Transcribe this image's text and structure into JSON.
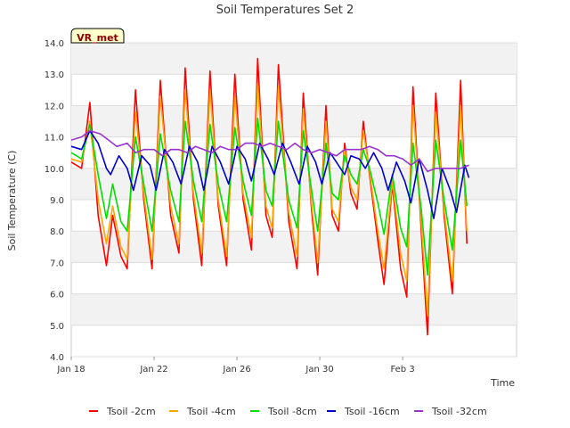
{
  "chart_data": {
    "type": "line",
    "title": "Soil Temperatures Set 2",
    "xlabel": "Time",
    "ylabel": "Soil Temperature (C)",
    "ylim": [
      4.0,
      14.0
    ],
    "yticks": [
      "4.0",
      "5.0",
      "6.0",
      "7.0",
      "8.0",
      "9.0",
      "10.0",
      "11.0",
      "12.0",
      "13.0",
      "14.0"
    ],
    "x_range_days": [
      0,
      21.5
    ],
    "xticks": [
      {
        "day": 0,
        "label": "Jan 18"
      },
      {
        "day": 4,
        "label": "Jan 22"
      },
      {
        "day": 8,
        "label": "Jan 26"
      },
      {
        "day": 12,
        "label": "Jan 30"
      },
      {
        "day": 16,
        "label": "Feb 3"
      }
    ],
    "grid": true,
    "legend_position": "bottom",
    "badge": "VR_met",
    "series": [
      {
        "name": "Tsoil -2cm",
        "color": "#ff0000",
        "points": [
          [
            0.0,
            10.2
          ],
          [
            0.5,
            10.0
          ],
          [
            0.9,
            12.1
          ],
          [
            1.3,
            8.5
          ],
          [
            1.7,
            6.9
          ],
          [
            2.0,
            8.5
          ],
          [
            2.4,
            7.2
          ],
          [
            2.7,
            6.8
          ],
          [
            3.1,
            12.5
          ],
          [
            3.5,
            9.0
          ],
          [
            3.9,
            6.8
          ],
          [
            4.3,
            12.8
          ],
          [
            4.8,
            8.5
          ],
          [
            5.2,
            7.3
          ],
          [
            5.5,
            13.2
          ],
          [
            5.9,
            9.0
          ],
          [
            6.3,
            6.9
          ],
          [
            6.7,
            13.1
          ],
          [
            7.1,
            8.8
          ],
          [
            7.5,
            6.9
          ],
          [
            7.9,
            13.0
          ],
          [
            8.3,
            9.0
          ],
          [
            8.7,
            7.4
          ],
          [
            9.0,
            13.5
          ],
          [
            9.4,
            8.5
          ],
          [
            9.7,
            7.8
          ],
          [
            10.0,
            13.3
          ],
          [
            10.5,
            8.3
          ],
          [
            10.9,
            6.8
          ],
          [
            11.2,
            12.4
          ],
          [
            11.6,
            8.7
          ],
          [
            11.9,
            6.6
          ],
          [
            12.3,
            12.0
          ],
          [
            12.6,
            8.5
          ],
          [
            12.9,
            8.0
          ],
          [
            13.2,
            10.8
          ],
          [
            13.5,
            9.2
          ],
          [
            13.8,
            8.7
          ],
          [
            14.1,
            11.5
          ],
          [
            14.4,
            9.8
          ],
          [
            14.8,
            7.7
          ],
          [
            15.1,
            6.3
          ],
          [
            15.5,
            9.5
          ],
          [
            15.9,
            6.8
          ],
          [
            16.2,
            5.9
          ],
          [
            16.5,
            12.6
          ],
          [
            16.9,
            8.0
          ],
          [
            17.2,
            4.7
          ],
          [
            17.6,
            12.4
          ],
          [
            18.0,
            8.5
          ],
          [
            18.4,
            6.0
          ],
          [
            18.8,
            12.8
          ],
          [
            19.1,
            7.6
          ]
        ]
      },
      {
        "name": "Tsoil -4cm",
        "color": "#ffa500",
        "points": [
          [
            0.0,
            10.3
          ],
          [
            0.5,
            10.2
          ],
          [
            0.9,
            11.5
          ],
          [
            1.3,
            9.0
          ],
          [
            1.7,
            7.6
          ],
          [
            2.0,
            8.8
          ],
          [
            2.4,
            7.5
          ],
          [
            2.7,
            7.1
          ],
          [
            3.1,
            11.8
          ],
          [
            3.5,
            9.2
          ],
          [
            3.9,
            7.1
          ],
          [
            4.3,
            12.3
          ],
          [
            4.8,
            8.8
          ],
          [
            5.2,
            7.6
          ],
          [
            5.5,
            12.5
          ],
          [
            5.9,
            9.2
          ],
          [
            6.3,
            7.3
          ],
          [
            6.7,
            12.5
          ],
          [
            7.1,
            9.0
          ],
          [
            7.5,
            7.2
          ],
          [
            7.9,
            12.3
          ],
          [
            8.3,
            9.2
          ],
          [
            8.7,
            7.8
          ],
          [
            9.0,
            12.7
          ],
          [
            9.4,
            8.8
          ],
          [
            9.7,
            8.1
          ],
          [
            10.0,
            12.6
          ],
          [
            10.5,
            8.6
          ],
          [
            10.9,
            7.2
          ],
          [
            11.2,
            11.9
          ],
          [
            11.6,
            8.9
          ],
          [
            11.9,
            7.0
          ],
          [
            12.3,
            11.5
          ],
          [
            12.6,
            8.7
          ],
          [
            12.9,
            8.3
          ],
          [
            13.2,
            10.6
          ],
          [
            13.5,
            9.4
          ],
          [
            13.8,
            9.0
          ],
          [
            14.1,
            11.2
          ],
          [
            14.4,
            9.9
          ],
          [
            14.8,
            8.0
          ],
          [
            15.1,
            6.8
          ],
          [
            15.5,
            9.6
          ],
          [
            15.9,
            7.3
          ],
          [
            16.2,
            6.4
          ],
          [
            16.5,
            12.0
          ],
          [
            16.9,
            8.3
          ],
          [
            17.2,
            5.3
          ],
          [
            17.6,
            11.8
          ],
          [
            18.0,
            8.7
          ],
          [
            18.4,
            6.4
          ],
          [
            18.8,
            12.0
          ],
          [
            19.1,
            8.0
          ]
        ]
      },
      {
        "name": "Tsoil -8cm",
        "color": "#00e000",
        "points": [
          [
            0.0,
            10.5
          ],
          [
            0.5,
            10.3
          ],
          [
            0.9,
            11.4
          ],
          [
            1.3,
            9.8
          ],
          [
            1.7,
            8.4
          ],
          [
            2.0,
            9.5
          ],
          [
            2.4,
            8.3
          ],
          [
            2.7,
            8.0
          ],
          [
            3.1,
            11.0
          ],
          [
            3.5,
            9.5
          ],
          [
            3.9,
            8.0
          ],
          [
            4.3,
            11.1
          ],
          [
            4.8,
            9.3
          ],
          [
            5.2,
            8.3
          ],
          [
            5.5,
            11.5
          ],
          [
            5.9,
            9.6
          ],
          [
            6.3,
            8.3
          ],
          [
            6.7,
            11.4
          ],
          [
            7.1,
            9.5
          ],
          [
            7.5,
            8.3
          ],
          [
            7.9,
            11.3
          ],
          [
            8.3,
            9.6
          ],
          [
            8.7,
            8.5
          ],
          [
            9.0,
            11.6
          ],
          [
            9.4,
            9.3
          ],
          [
            9.7,
            8.8
          ],
          [
            10.0,
            11.5
          ],
          [
            10.5,
            9.0
          ],
          [
            10.9,
            8.1
          ],
          [
            11.2,
            11.2
          ],
          [
            11.6,
            9.3
          ],
          [
            11.9,
            8.0
          ],
          [
            12.3,
            10.8
          ],
          [
            12.6,
            9.2
          ],
          [
            12.9,
            9.0
          ],
          [
            13.2,
            10.4
          ],
          [
            13.5,
            9.8
          ],
          [
            13.8,
            9.5
          ],
          [
            14.1,
            10.6
          ],
          [
            14.4,
            10.0
          ],
          [
            14.8,
            8.9
          ],
          [
            15.1,
            7.9
          ],
          [
            15.5,
            9.8
          ],
          [
            15.9,
            8.1
          ],
          [
            16.2,
            7.5
          ],
          [
            16.5,
            10.8
          ],
          [
            16.9,
            8.7
          ],
          [
            17.2,
            6.6
          ],
          [
            17.6,
            10.9
          ],
          [
            18.0,
            9.0
          ],
          [
            18.4,
            7.4
          ],
          [
            18.8,
            10.9
          ],
          [
            19.1,
            8.8
          ]
        ]
      },
      {
        "name": "Tsoil -16cm",
        "color": "#0000cc",
        "points": [
          [
            0.0,
            10.7
          ],
          [
            0.5,
            10.6
          ],
          [
            0.9,
            11.2
          ],
          [
            1.3,
            10.8
          ],
          [
            1.7,
            10.0
          ],
          [
            1.9,
            9.8
          ],
          [
            2.3,
            10.4
          ],
          [
            2.7,
            10.0
          ],
          [
            3.0,
            9.3
          ],
          [
            3.4,
            10.4
          ],
          [
            3.8,
            10.1
          ],
          [
            4.1,
            9.3
          ],
          [
            4.5,
            10.6
          ],
          [
            4.9,
            10.2
          ],
          [
            5.3,
            9.5
          ],
          [
            5.7,
            10.7
          ],
          [
            6.1,
            10.2
          ],
          [
            6.4,
            9.3
          ],
          [
            6.8,
            10.7
          ],
          [
            7.2,
            10.2
          ],
          [
            7.6,
            9.5
          ],
          [
            8.0,
            10.7
          ],
          [
            8.4,
            10.3
          ],
          [
            8.7,
            9.6
          ],
          [
            9.1,
            10.8
          ],
          [
            9.5,
            10.3
          ],
          [
            9.8,
            9.8
          ],
          [
            10.2,
            10.8
          ],
          [
            10.6,
            10.2
          ],
          [
            11.0,
            9.5
          ],
          [
            11.4,
            10.7
          ],
          [
            11.8,
            10.2
          ],
          [
            12.1,
            9.5
          ],
          [
            12.5,
            10.5
          ],
          [
            12.9,
            10.1
          ],
          [
            13.2,
            9.8
          ],
          [
            13.5,
            10.4
          ],
          [
            13.9,
            10.3
          ],
          [
            14.2,
            10.0
          ],
          [
            14.6,
            10.5
          ],
          [
            15.0,
            10.0
          ],
          [
            15.3,
            9.3
          ],
          [
            15.7,
            10.2
          ],
          [
            16.1,
            9.6
          ],
          [
            16.4,
            8.9
          ],
          [
            16.8,
            10.3
          ],
          [
            17.2,
            9.3
          ],
          [
            17.5,
            8.4
          ],
          [
            17.9,
            10.0
          ],
          [
            18.3,
            9.3
          ],
          [
            18.6,
            8.6
          ],
          [
            19.0,
            10.1
          ],
          [
            19.2,
            9.7
          ]
        ]
      },
      {
        "name": "Tsoil -32cm",
        "color": "#9933cc",
        "points": [
          [
            0.0,
            10.9
          ],
          [
            0.5,
            11.0
          ],
          [
            0.9,
            11.2
          ],
          [
            1.4,
            11.1
          ],
          [
            1.8,
            10.9
          ],
          [
            2.2,
            10.7
          ],
          [
            2.7,
            10.8
          ],
          [
            3.1,
            10.5
          ],
          [
            3.5,
            10.6
          ],
          [
            4.0,
            10.6
          ],
          [
            4.4,
            10.4
          ],
          [
            4.8,
            10.6
          ],
          [
            5.2,
            10.6
          ],
          [
            5.6,
            10.5
          ],
          [
            6.0,
            10.7
          ],
          [
            6.4,
            10.6
          ],
          [
            6.8,
            10.5
          ],
          [
            7.2,
            10.7
          ],
          [
            7.6,
            10.6
          ],
          [
            8.0,
            10.6
          ],
          [
            8.4,
            10.8
          ],
          [
            8.8,
            10.8
          ],
          [
            9.2,
            10.7
          ],
          [
            9.6,
            10.8
          ],
          [
            10.0,
            10.7
          ],
          [
            10.4,
            10.6
          ],
          [
            10.8,
            10.8
          ],
          [
            11.2,
            10.6
          ],
          [
            11.6,
            10.5
          ],
          [
            12.0,
            10.6
          ],
          [
            12.4,
            10.5
          ],
          [
            12.8,
            10.4
          ],
          [
            13.2,
            10.6
          ],
          [
            13.6,
            10.6
          ],
          [
            14.0,
            10.6
          ],
          [
            14.4,
            10.7
          ],
          [
            14.8,
            10.6
          ],
          [
            15.2,
            10.4
          ],
          [
            15.6,
            10.4
          ],
          [
            16.0,
            10.3
          ],
          [
            16.4,
            10.1
          ],
          [
            16.8,
            10.3
          ],
          [
            17.2,
            9.9
          ],
          [
            17.6,
            10.0
          ],
          [
            18.0,
            10.0
          ],
          [
            18.4,
            10.0
          ],
          [
            18.8,
            10.0
          ],
          [
            19.2,
            10.1
          ]
        ]
      }
    ]
  }
}
